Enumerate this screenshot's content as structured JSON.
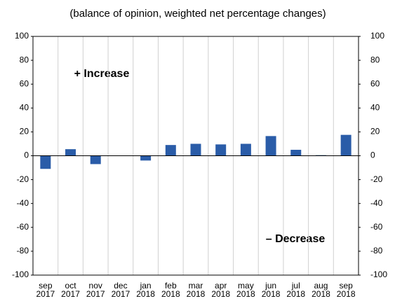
{
  "chart_data": {
    "type": "bar",
    "subtitle": "(balance of opinion, weighted net percentage changes)",
    "categories": [
      [
        "sep",
        "2017"
      ],
      [
        "oct",
        "2017"
      ],
      [
        "nov",
        "2017"
      ],
      [
        "dec",
        "2017"
      ],
      [
        "jan",
        "2018"
      ],
      [
        "feb",
        "2018"
      ],
      [
        "mar",
        "2018"
      ],
      [
        "apr",
        "2018"
      ],
      [
        "may",
        "2018"
      ],
      [
        "jun",
        "2018"
      ],
      [
        "jul",
        "2018"
      ],
      [
        "aug",
        "2018"
      ],
      [
        "sep",
        "2018"
      ]
    ],
    "values": [
      -11,
      5.5,
      -7,
      0,
      -4,
      9,
      10,
      9.5,
      10,
      16.5,
      5,
      0.5,
      17.5
    ],
    "color": "#2a5ca8",
    "ylim": [
      -100,
      100
    ],
    "yticks": [
      -100,
      -80,
      -60,
      -40,
      -20,
      0,
      20,
      40,
      60,
      80,
      100
    ],
    "y2lim": [
      -100,
      100
    ],
    "y2ticks": [
      -100,
      -80,
      -60,
      -40,
      -20,
      0,
      20,
      40,
      60,
      80,
      100
    ],
    "annotations": [
      "+ Increase",
      "– Decrease"
    ],
    "grid": true
  }
}
